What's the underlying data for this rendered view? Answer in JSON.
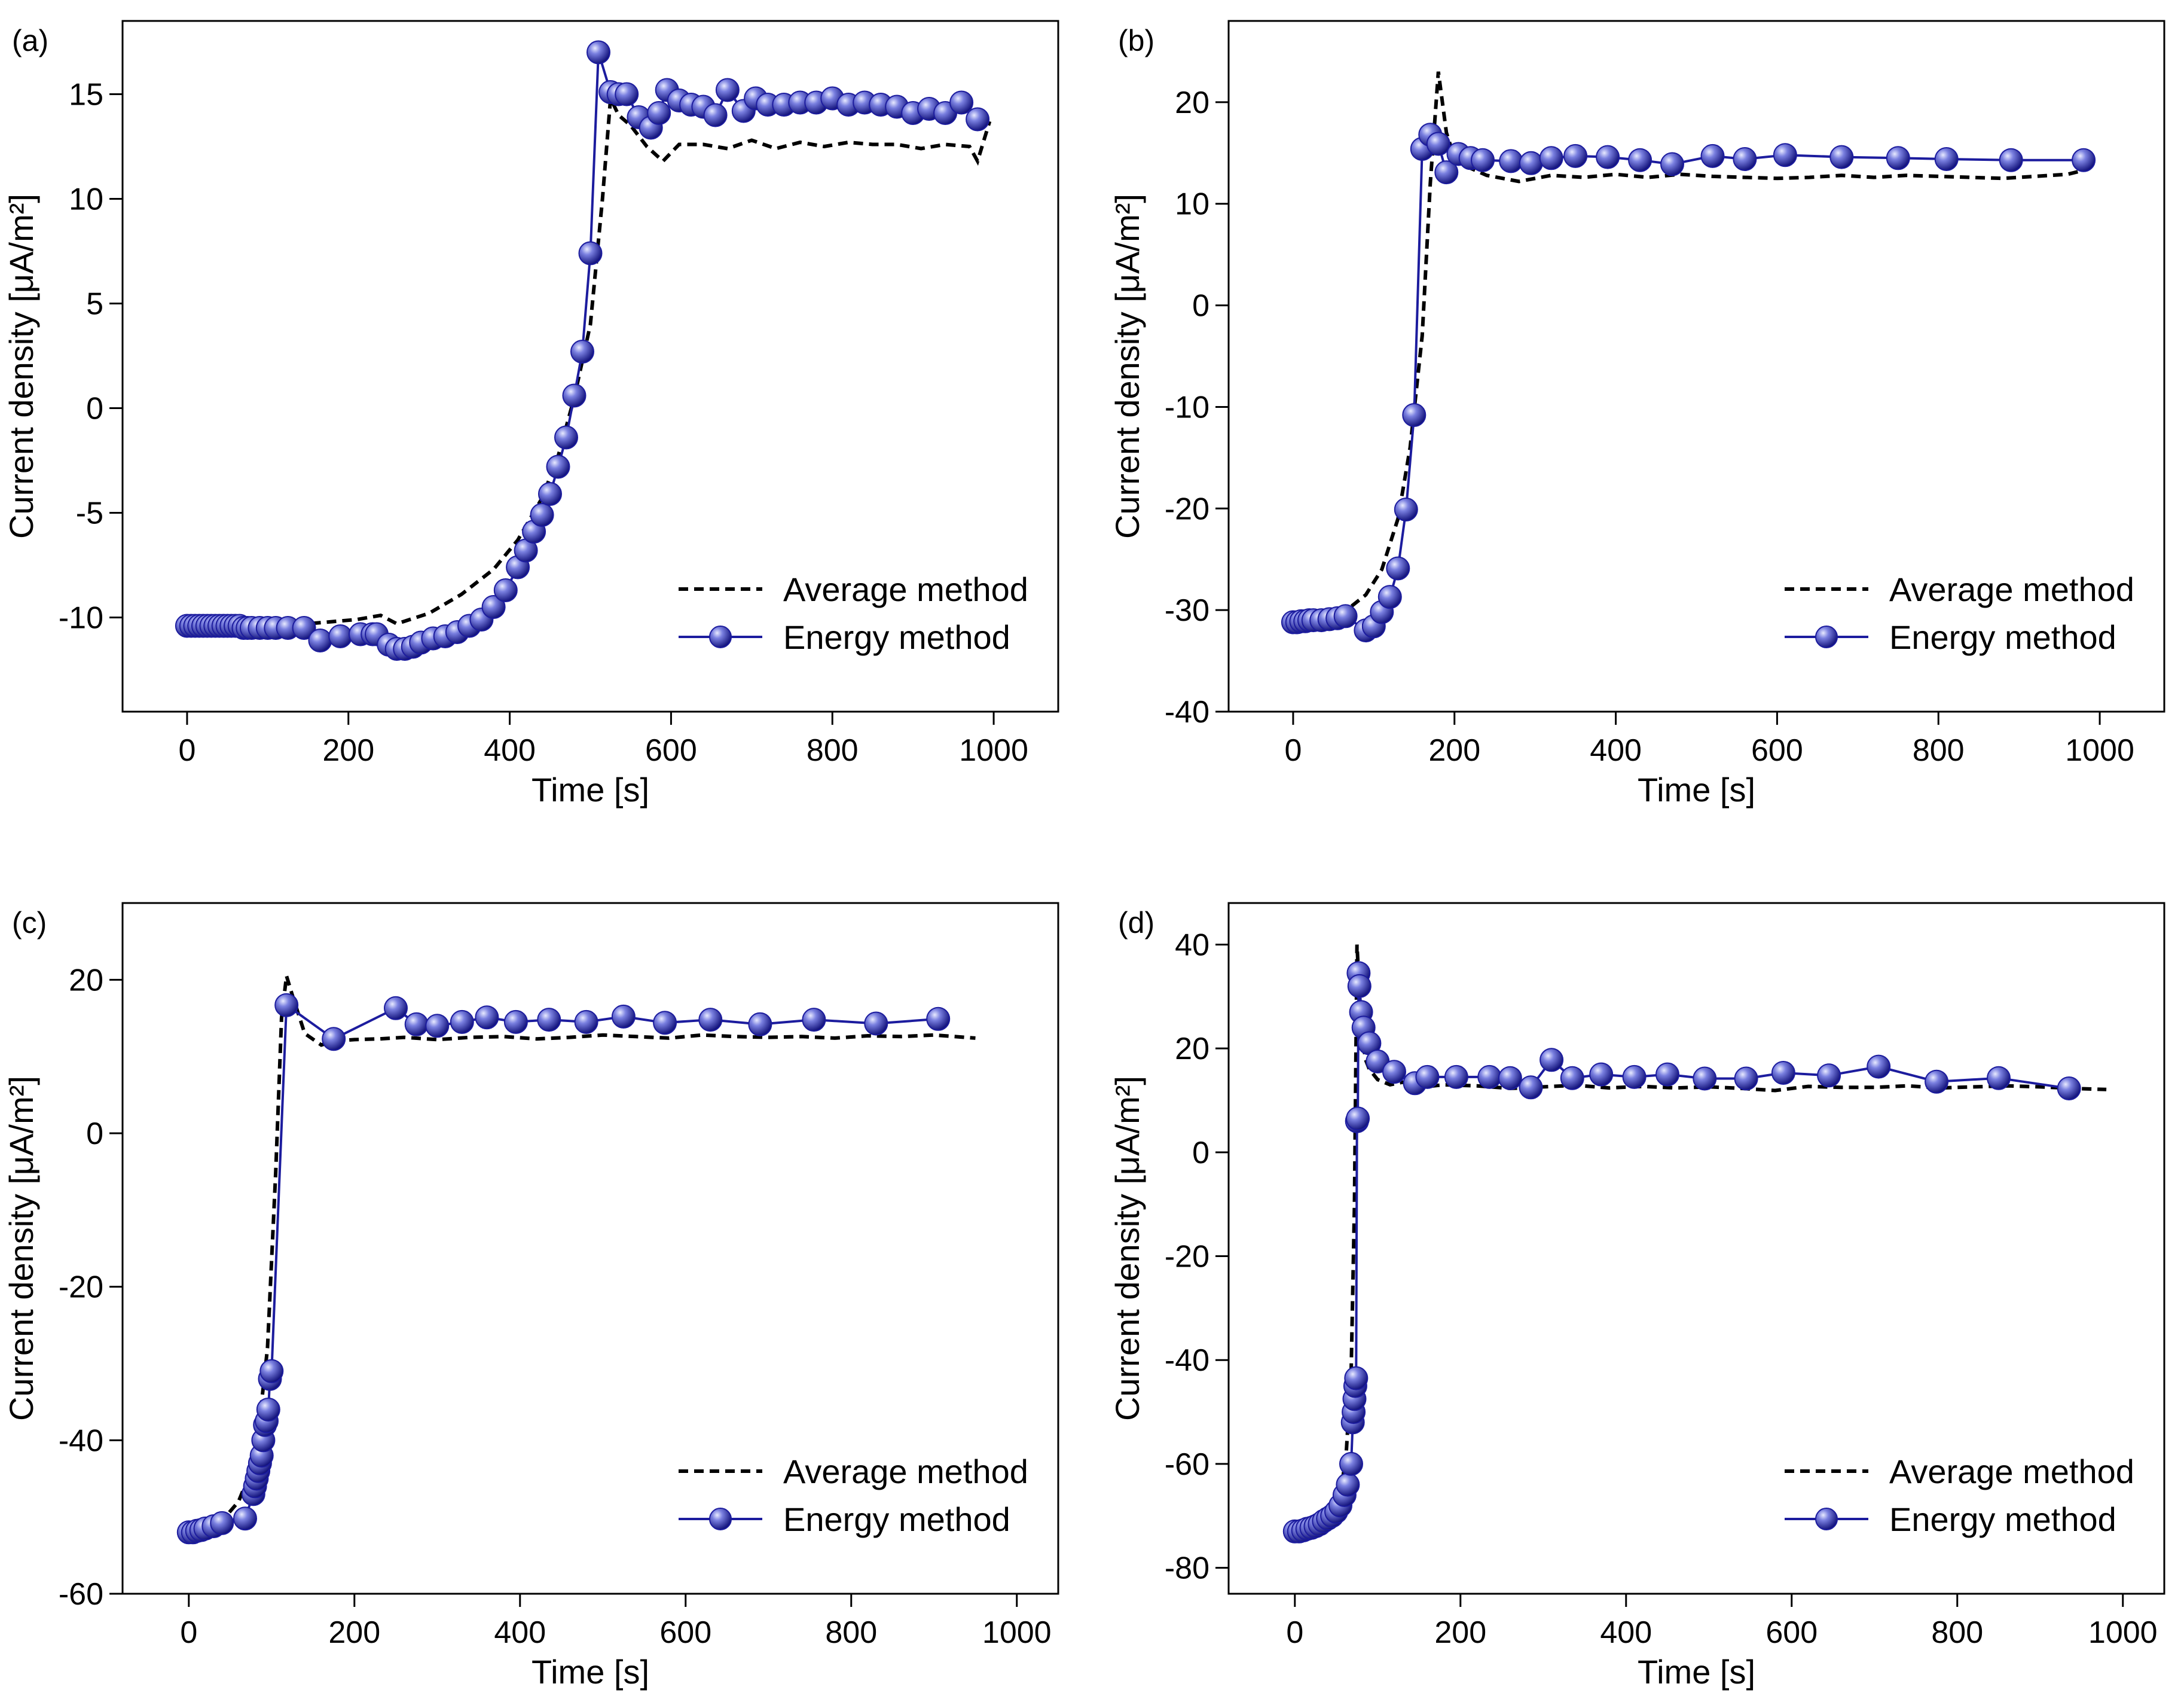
{
  "figure": {
    "series_colors": {
      "average": "#000000",
      "energy": "#1c1c9e",
      "energy_light": "#9aa0ee"
    }
  },
  "chart_data": [
    {
      "panel": "(a)",
      "type": "line",
      "xlabel": "Time [s]",
      "ylabel": "Current density [μA/m²]",
      "xlim": [
        -80,
        1080
      ],
      "ylim": [
        -14.5,
        18.5
      ],
      "xticks": [
        0,
        200,
        400,
        600,
        800,
        1000
      ],
      "yticks": [
        -10,
        -5,
        0,
        5,
        10,
        15
      ],
      "legend_position": "bottom-right",
      "series": [
        {
          "name": "Average method",
          "style": "dashed",
          "x": [
            0,
            40,
            80,
            120,
            150,
            180,
            210,
            240,
            260,
            300,
            340,
            380,
            410,
            440,
            460,
            480,
            500,
            515,
            525,
            535,
            550,
            570,
            590,
            610,
            640,
            670,
            700,
            730,
            760,
            790,
            820,
            850,
            880,
            910,
            940,
            970,
            980,
            995
          ],
          "y": [
            -10.3,
            -10.3,
            -10.4,
            -10.4,
            -10.3,
            -10.2,
            -10.1,
            -9.9,
            -10.3,
            -9.8,
            -8.9,
            -7.7,
            -6.3,
            -4.3,
            -2.3,
            0.5,
            4,
            10,
            14.8,
            14,
            13.5,
            12.5,
            11.8,
            12.6,
            12.6,
            12.4,
            12.8,
            12.4,
            12.7,
            12.5,
            12.7,
            12.6,
            12.6,
            12.4,
            12.6,
            12.5,
            11.8,
            13.7
          ]
        },
        {
          "name": "Energy method",
          "style": "solid-markers",
          "x": [
            0,
            5,
            10,
            15,
            20,
            25,
            30,
            35,
            40,
            45,
            50,
            55,
            60,
            65,
            70,
            75,
            80,
            90,
            100,
            110,
            125,
            145,
            165,
            190,
            215,
            230,
            235,
            250,
            260,
            270,
            280,
            290,
            305,
            320,
            335,
            350,
            365,
            380,
            395,
            410,
            420,
            430,
            440,
            450,
            460,
            470,
            480,
            490,
            500,
            510,
            525,
            535,
            545,
            560,
            575,
            585,
            595,
            610,
            625,
            640,
            655,
            670,
            690,
            705,
            720,
            740,
            760,
            780,
            800,
            820,
            840,
            860,
            880,
            900,
            920,
            940,
            960,
            980
          ],
          "y": [
            -10.4,
            -10.4,
            -10.4,
            -10.4,
            -10.4,
            -10.4,
            -10.4,
            -10.4,
            -10.4,
            -10.4,
            -10.4,
            -10.4,
            -10.4,
            -10.4,
            -10.5,
            -10.5,
            -10.5,
            -10.5,
            -10.5,
            -10.5,
            -10.5,
            -10.5,
            -11.1,
            -10.9,
            -10.8,
            -10.8,
            -10.8,
            -11.3,
            -11.5,
            -11.5,
            -11.4,
            -11.2,
            -11,
            -10.9,
            -10.7,
            -10.4,
            -10.1,
            -9.5,
            -8.7,
            -7.6,
            -6.8,
            -5.9,
            -5.1,
            -4.1,
            -2.8,
            -1.4,
            0.6,
            2.7,
            7.4,
            17,
            15.1,
            15,
            15,
            13.9,
            13.4,
            14.1,
            15.2,
            14.7,
            14.5,
            14.4,
            14,
            15.2,
            14.2,
            14.8,
            14.5,
            14.5,
            14.6,
            14.6,
            14.8,
            14.5,
            14.6,
            14.5,
            14.4,
            14.1,
            14.3,
            14.1,
            14.6,
            13.8
          ]
        }
      ]
    },
    {
      "panel": "(b)",
      "type": "line",
      "xlabel": "Time [s]",
      "ylabel": "Current density [μA/m²]",
      "xlim": [
        -80,
        1080
      ],
      "ylim": [
        -40,
        28
      ],
      "xticks": [
        0,
        200,
        400,
        600,
        800,
        1000
      ],
      "yticks": [
        -40,
        -30,
        -20,
        -10,
        0,
        10,
        20
      ],
      "legend_position": "bottom-right",
      "series": [
        {
          "name": "Average method",
          "style": "dashed",
          "x": [
            0,
            30,
            60,
            90,
            110,
            130,
            145,
            160,
            170,
            180,
            190,
            200,
            220,
            240,
            280,
            320,
            360,
            400,
            440,
            480,
            520,
            560,
            600,
            640,
            680,
            720,
            760,
            800,
            840,
            880,
            920,
            960,
            980
          ],
          "y": [
            -31.2,
            -31,
            -30.4,
            -28.5,
            -26,
            -21,
            -14,
            -3,
            12,
            23,
            17,
            14.5,
            13.5,
            12.8,
            12.2,
            12.8,
            12.6,
            12.9,
            12.6,
            12.9,
            12.7,
            12.6,
            12.5,
            12.6,
            12.8,
            12.6,
            12.8,
            12.7,
            12.6,
            12.5,
            12.7,
            12.9,
            13.3
          ]
        },
        {
          "name": "Energy method",
          "style": "solid-markers",
          "x": [
            0,
            5,
            10,
            15,
            20,
            25,
            35,
            45,
            55,
            65,
            90,
            100,
            110,
            120,
            130,
            140,
            150,
            160,
            170,
            180,
            190,
            205,
            220,
            235,
            270,
            295,
            320,
            350,
            390,
            430,
            470,
            520,
            560,
            610,
            680,
            750,
            810,
            890,
            980
          ],
          "y": [
            -31.2,
            -31.2,
            -31.1,
            -31.1,
            -31,
            -31,
            -31,
            -30.9,
            -30.8,
            -30.6,
            -32,
            -31.6,
            -30.2,
            -28.7,
            -25.9,
            -20.1,
            -10.8,
            15.4,
            16.8,
            15.9,
            13.1,
            14.9,
            14.5,
            14.3,
            14.2,
            14,
            14.5,
            14.7,
            14.6,
            14.3,
            13.9,
            14.7,
            14.4,
            14.8,
            14.6,
            14.5,
            14.4,
            14.3,
            14.3
          ]
        }
      ]
    },
    {
      "panel": "(c)",
      "type": "line",
      "xlabel": "Time [s]",
      "ylabel": "Current density [μA/m²]",
      "xlim": [
        -80,
        1050
      ],
      "ylim": [
        -60,
        30
      ],
      "xticks": [
        0,
        200,
        400,
        600,
        800,
        1000
      ],
      "yticks": [
        -60,
        -40,
        -20,
        0,
        20
      ],
      "legend_position": "bottom-right",
      "series": [
        {
          "name": "Average method",
          "style": "dashed",
          "x": [
            0,
            20,
            40,
            60,
            75,
            85,
            95,
            105,
            112,
            118,
            125,
            140,
            160,
            175,
            200,
            230,
            260,
            300,
            340,
            380,
            420,
            460,
            500,
            540,
            580,
            620,
            660,
            700,
            740,
            780,
            820,
            860,
            900,
            950
          ],
          "y": [
            -52,
            -51.5,
            -50.5,
            -48,
            -44,
            -38,
            -28,
            -5,
            15,
            20.5,
            18,
            13,
            11.5,
            12,
            12.2,
            12.3,
            12.5,
            12.2,
            12.5,
            12.6,
            12.3,
            12.5,
            12.8,
            12.6,
            12.4,
            12.8,
            12.6,
            12.5,
            12.6,
            12.4,
            12.7,
            12.6,
            12.8,
            12.4
          ]
        },
        {
          "name": "Energy method",
          "style": "solid-markers",
          "x": [
            0,
            5,
            10,
            15,
            20,
            30,
            40,
            68,
            78,
            80,
            82,
            84,
            86,
            88,
            90,
            92,
            94,
            96,
            98,
            100,
            118,
            175,
            250,
            275,
            300,
            330,
            360,
            395,
            435,
            480,
            525,
            575,
            630,
            690,
            755,
            830,
            905
          ],
          "y": [
            -52,
            -52,
            -51.8,
            -51.7,
            -51.5,
            -51.2,
            -50.8,
            -50.2,
            -47,
            -46,
            -45,
            -44,
            -43,
            -42,
            -40,
            -38,
            -37.5,
            -36,
            -32,
            -31,
            16.7,
            12.3,
            16.3,
            14.2,
            14,
            14.5,
            15.1,
            14.5,
            14.8,
            14.5,
            15.2,
            14.4,
            14.8,
            14.2,
            14.8,
            14.3,
            14.9
          ]
        }
      ]
    },
    {
      "panel": "(d)",
      "type": "line",
      "xlabel": "Time [s]",
      "ylabel": "Current density [μA/m²]",
      "xlim": [
        -80,
        1050
      ],
      "ylim": [
        -85,
        48
      ],
      "xticks": [
        0,
        200,
        400,
        600,
        800,
        1000
      ],
      "yticks": [
        -80,
        -60,
        -40,
        -20,
        0,
        20,
        40
      ],
      "legend_position": "bottom-right",
      "series": [
        {
          "name": "Average method",
          "style": "dashed",
          "x": [
            0,
            20,
            40,
            55,
            62,
            68,
            72,
            75,
            80,
            85,
            90,
            100,
            115,
            130,
            150,
            180,
            220,
            260,
            300,
            340,
            380,
            420,
            460,
            500,
            540,
            580,
            620,
            660,
            700,
            740,
            780,
            820,
            860,
            900,
            940,
            980
          ],
          "y": [
            -73,
            -72.5,
            -71,
            -66,
            -58,
            -42,
            -10,
            40,
            25,
            18,
            16,
            14,
            13,
            13.5,
            12.5,
            13,
            12.8,
            12.3,
            12.6,
            12.9,
            12.4,
            12.7,
            12.4,
            12.6,
            12.3,
            11.9,
            12.7,
            12.5,
            12.5,
            12.8,
            12.4,
            12.6,
            12.8,
            12.6,
            12.3,
            12.1
          ]
        },
        {
          "name": "Energy method",
          "style": "solid-markers",
          "x": [
            0,
            5,
            10,
            15,
            20,
            25,
            30,
            35,
            40,
            45,
            50,
            55,
            60,
            64,
            68,
            70,
            71,
            72,
            73,
            74,
            75,
            76,
            77,
            78,
            80,
            83,
            90,
            100,
            120,
            145,
            160,
            195,
            235,
            260,
            285,
            310,
            335,
            370,
            410,
            450,
            495,
            545,
            590,
            645,
            705,
            775,
            850,
            935
          ],
          "y": [
            -73,
            -73,
            -72.8,
            -72.5,
            -72.3,
            -72,
            -71.6,
            -71,
            -70.5,
            -70,
            -69.2,
            -68,
            -66,
            -64,
            -60,
            -52,
            -50,
            -47.5,
            -45,
            -43.5,
            6,
            6.5,
            34.5,
            32,
            27,
            24,
            21,
            17.5,
            15.5,
            13.3,
            14.5,
            14.5,
            14.5,
            14.3,
            12.5,
            17.8,
            14.3,
            15,
            14.5,
            15,
            14.2,
            14.2,
            15.3,
            14.8,
            16.5,
            13.6,
            14.3,
            12.3
          ]
        }
      ]
    }
  ]
}
